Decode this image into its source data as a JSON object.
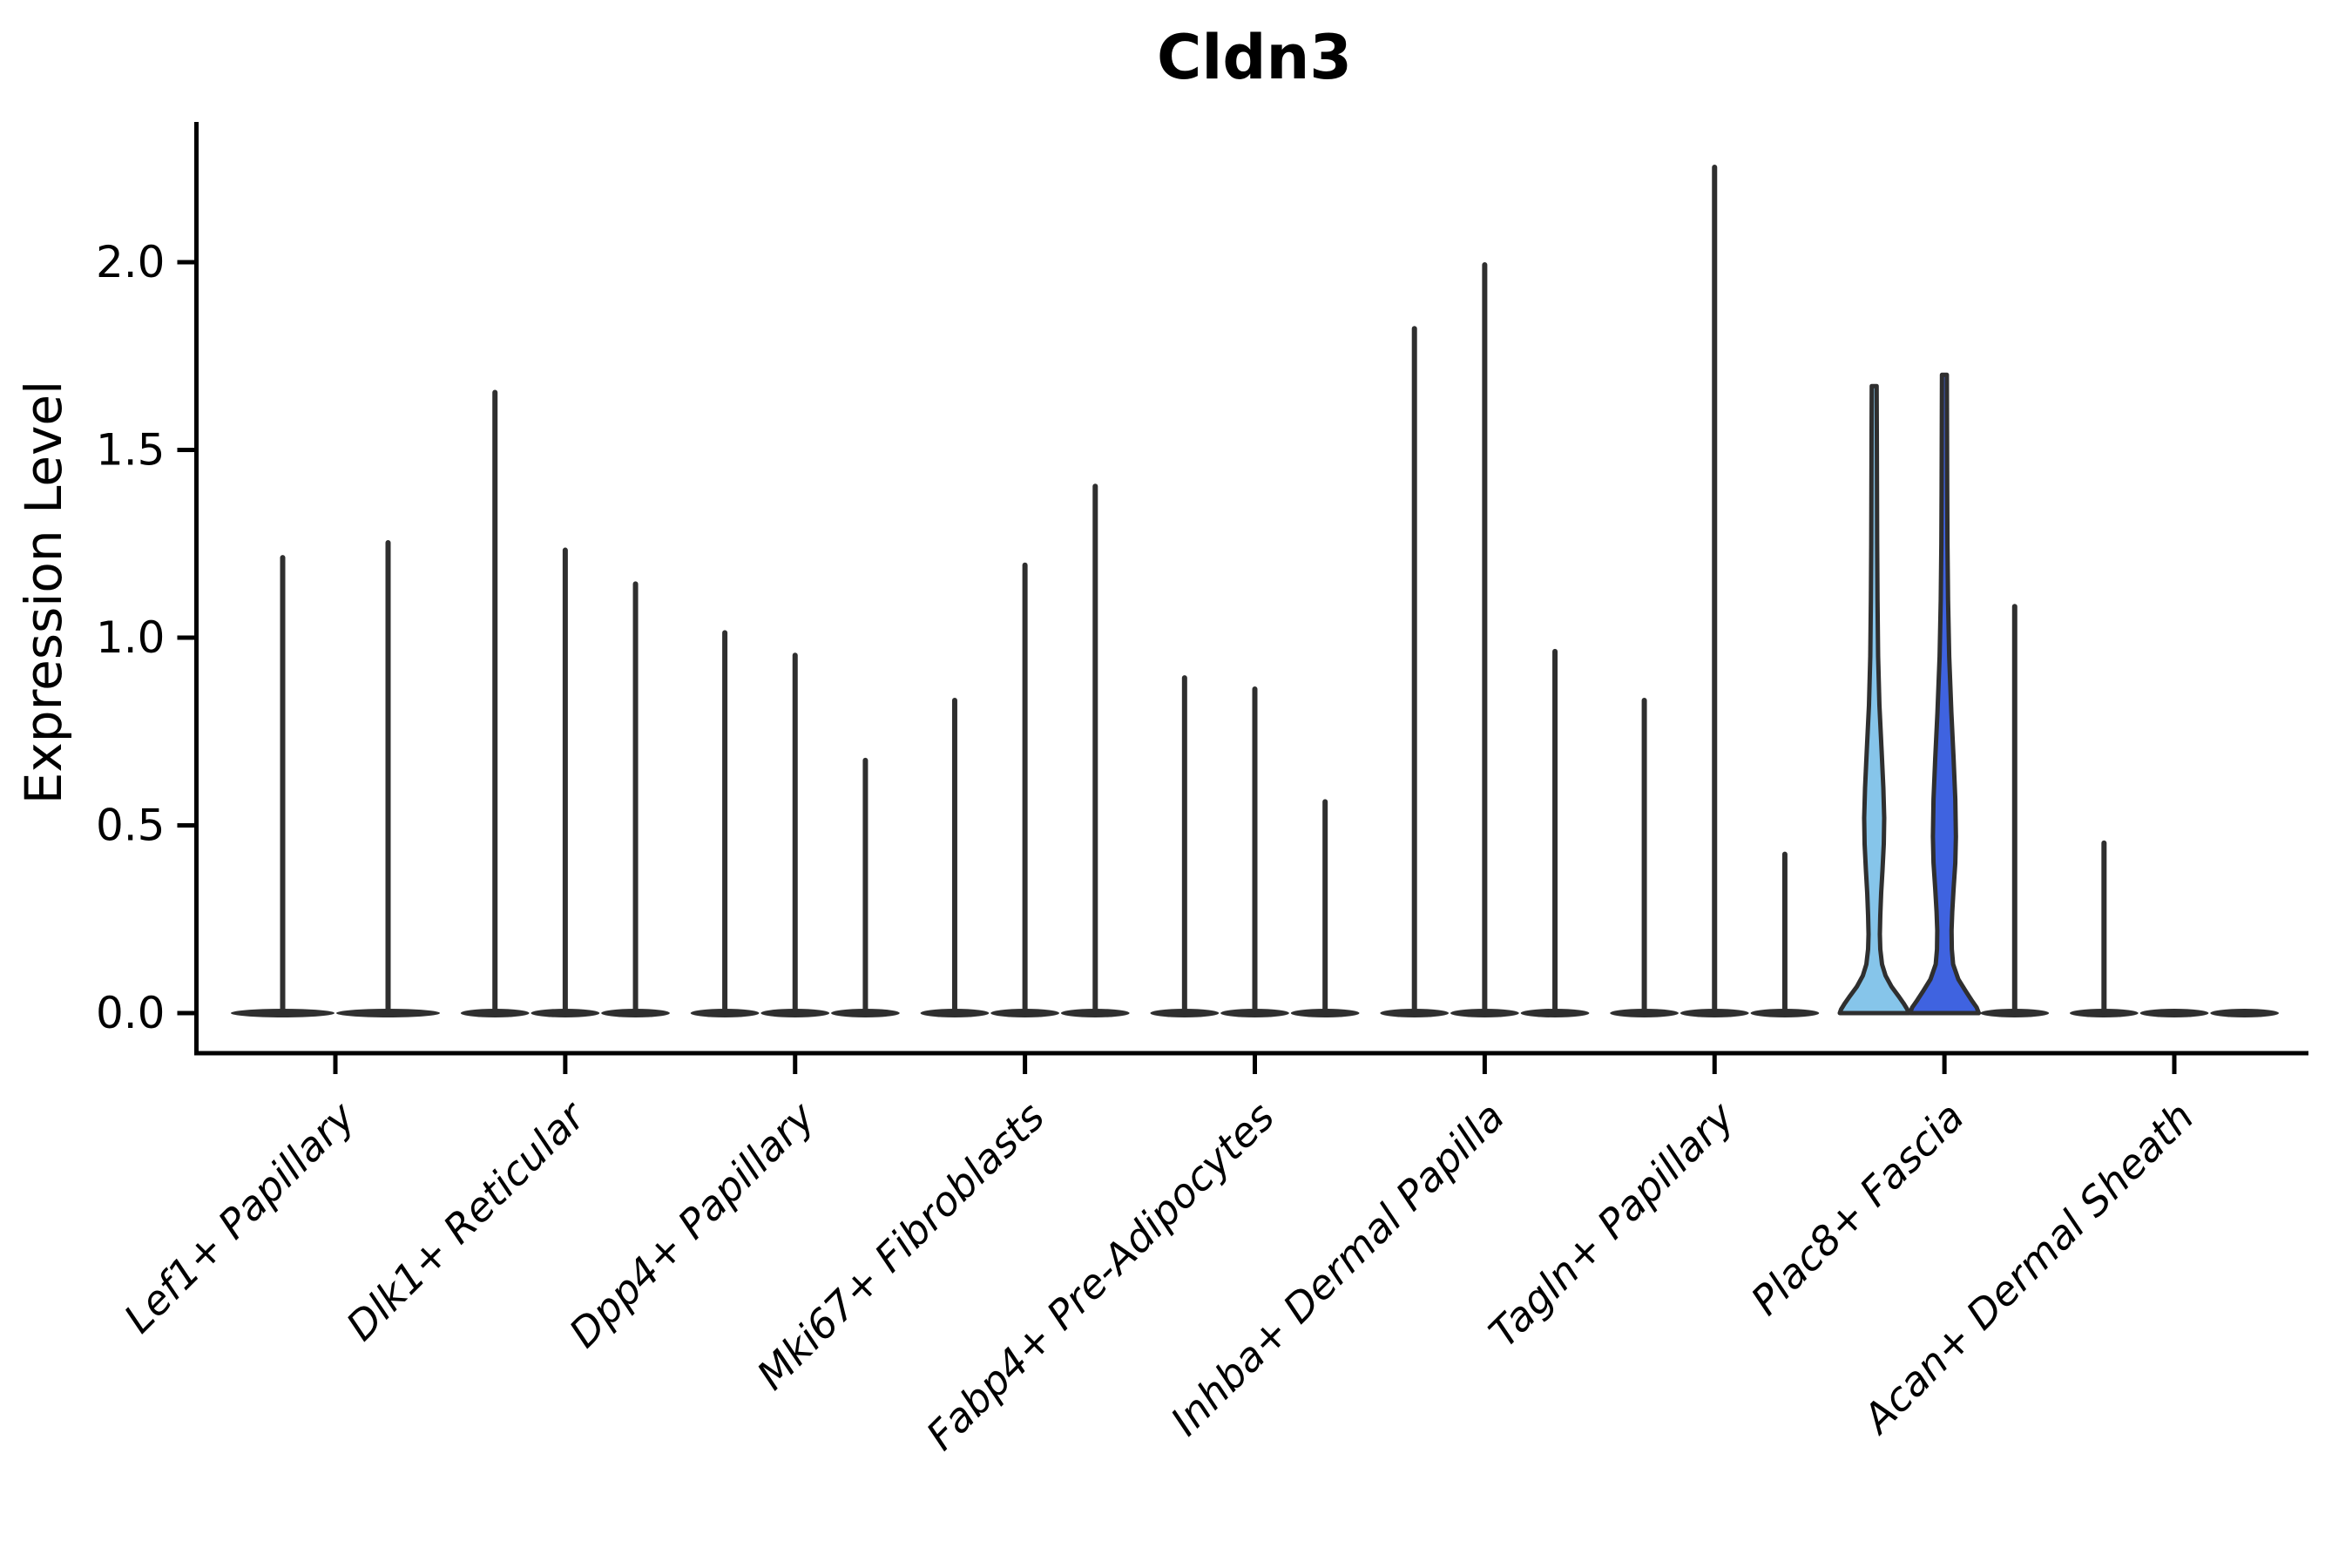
{
  "chart_data": {
    "type": "violin",
    "title": "Cldn3",
    "ylabel": "Expression Level",
    "xlabel": "",
    "ylim": [
      0,
      2.35
    ],
    "ytick_labels": [
      "0.0",
      "0.5",
      "1.0",
      "1.5",
      "2.0"
    ],
    "ytick_values": [
      0,
      0.5,
      1.0,
      1.5,
      2.0
    ],
    "grid": "off",
    "legend": "none",
    "categories": [
      "Lef1+ Papillary",
      "Dlk1+ Reticular",
      "Dpp4+ Papillary",
      "Mki67+ Fibroblasts",
      "Fabp4+ Pre-Adipocytes",
      "Inhba+ Dermal Papilla",
      "Tagln+ Papillary",
      "Plac8+ Fascia",
      "Acan+ Dermal Sheath"
    ],
    "description": "Violin plot of Cldn3 expression; most violins are flat at 0 with a thin spike to the max expressed value; two violins in Plac8+ Fascia are colored and show real density bulges.",
    "groups": [
      {
        "category": "Lef1+ Papillary",
        "violins": [
          {
            "max": 1.22
          },
          {
            "max": 1.26
          }
        ]
      },
      {
        "category": "Dlk1+ Reticular",
        "violins": [
          {
            "max": 1.66
          },
          {
            "max": 1.24
          },
          {
            "max": 1.15
          }
        ]
      },
      {
        "category": "Dpp4+ Papillary",
        "violins": [
          {
            "max": 1.02
          },
          {
            "max": 0.96
          },
          {
            "max": 0.68
          }
        ]
      },
      {
        "category": "Mki67+ Fibroblasts",
        "violins": [
          {
            "max": 0.84
          },
          {
            "max": 1.2
          },
          {
            "max": 1.41
          }
        ]
      },
      {
        "category": "Fabp4+ Pre-Adipocytes",
        "violins": [
          {
            "max": 0.9
          },
          {
            "max": 0.87
          },
          {
            "max": 0.57
          }
        ]
      },
      {
        "category": "Inhba+ Dermal Papilla",
        "violins": [
          {
            "max": 1.83
          },
          {
            "max": 2.0
          },
          {
            "max": 0.97
          }
        ]
      },
      {
        "category": "Tagln+ Papillary",
        "violins": [
          {
            "max": 0.84
          },
          {
            "max": 2.26
          },
          {
            "max": 0.43
          }
        ]
      },
      {
        "category": "Plac8+ Fascia",
        "violins": [
          {
            "max": 1.67,
            "fill": "light",
            "profile": [
              [
                1.67,
                2.8
              ],
              [
                1.55,
                3.0
              ],
              [
                1.4,
                3.2
              ],
              [
                1.25,
                3.4
              ],
              [
                1.1,
                3.8
              ],
              [
                0.95,
                4.5
              ],
              [
                0.82,
                6.0
              ],
              [
                0.7,
                8.5
              ],
              [
                0.6,
                10.5
              ],
              [
                0.52,
                11.5
              ],
              [
                0.45,
                11.0
              ],
              [
                0.38,
                9.5
              ],
              [
                0.32,
                8.0
              ],
              [
                0.26,
                7.0
              ],
              [
                0.21,
                6.5
              ],
              [
                0.17,
                7.0
              ],
              [
                0.13,
                9.0
              ],
              [
                0.1,
                13.0
              ],
              [
                0.07,
                20.0
              ],
              [
                0.045,
                28.0
              ],
              [
                0.025,
                34.0
              ],
              [
                0.01,
                38.0
              ],
              [
                0.0,
                39.5
              ]
            ]
          },
          {
            "max": 1.7,
            "fill": "royal",
            "profile": [
              [
                1.7,
                2.8
              ],
              [
                1.55,
                3.0
              ],
              [
                1.4,
                3.2
              ],
              [
                1.25,
                3.5
              ],
              [
                1.1,
                4.2
              ],
              [
                0.95,
                5.5
              ],
              [
                0.8,
                8.0
              ],
              [
                0.68,
                10.5
              ],
              [
                0.57,
                12.5
              ],
              [
                0.47,
                13.2
              ],
              [
                0.4,
                12.5
              ],
              [
                0.33,
                10.5
              ],
              [
                0.27,
                9.0
              ],
              [
                0.22,
                8.2
              ],
              [
                0.17,
                8.5
              ],
              [
                0.13,
                10.0
              ],
              [
                0.09,
                16.0
              ],
              [
                0.06,
                24.0
              ],
              [
                0.035,
                31.0
              ],
              [
                0.015,
                37.0
              ],
              [
                0.0,
                39.5
              ]
            ]
          },
          {
            "max": 1.09
          }
        ]
      },
      {
        "category": "Acan+ Dermal Sheath",
        "violins": [
          {
            "max": 0.46
          },
          {
            "max": 0
          },
          {
            "max": 0
          }
        ]
      }
    ],
    "colors": {
      "violin_outline": "#2f2f2f",
      "axis": "#000000",
      "highlight_fills": {
        "light": "#86c5ea",
        "royal": "#3f63e0"
      },
      "background": "#ffffff"
    }
  }
}
